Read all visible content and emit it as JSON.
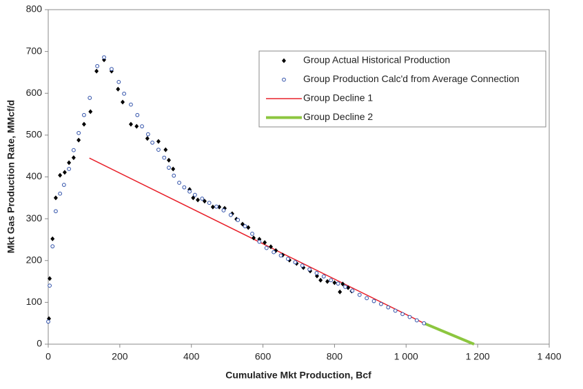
{
  "chart_data": {
    "type": "scatter",
    "x_label": "Cumulative Mkt Production, Bcf",
    "y_label": "Mkt Gas Production Rate, MMcf/d",
    "xlim": [
      0,
      1400
    ],
    "ylim": [
      0,
      800
    ],
    "xticks": [
      0,
      200,
      400,
      600,
      800,
      {
        "value": 1000,
        "label": "1 000"
      },
      {
        "value": 1200,
        "label": "1 200"
      },
      {
        "value": 1400,
        "label": "1 400"
      }
    ],
    "yticks": [
      0,
      100,
      200,
      300,
      400,
      500,
      600,
      700,
      800
    ],
    "legend_position": "upper right",
    "series": [
      {
        "name": "Group Actual Historical Production",
        "kind": "scatter",
        "marker": "diamond",
        "color": "#000000",
        "x": [
          2,
          4,
          12,
          21,
          33,
          46,
          58,
          71,
          85,
          100,
          118,
          135,
          156,
          177,
          195,
          208,
          231,
          247,
          277,
          308,
          328,
          337,
          349,
          395,
          405,
          418,
          437,
          460,
          478,
          493,
          514,
          526,
          543,
          559,
          574,
          590,
          605,
          622,
          636,
          655,
          674,
          694,
          713,
          732,
          751,
          761,
          780,
          800,
          815,
          823,
          838,
          848
        ],
        "values": [
          61,
          157,
          252,
          350,
          404,
          411,
          434,
          446,
          488,
          526,
          556,
          653,
          680,
          653,
          610,
          579,
          526,
          521,
          492,
          485,
          465,
          440,
          419,
          370,
          350,
          345,
          342,
          328,
          328,
          325,
          312,
          299,
          287,
          279,
          254,
          251,
          243,
          233,
          224,
          213,
          201,
          193,
          183,
          175,
          163,
          153,
          150,
          147,
          125,
          144,
          135,
          127
        ]
      },
      {
        "name": "Group Production Calc'd from Average Connection",
        "kind": "scatter",
        "marker": "circle",
        "color": "#2e4fa8",
        "x": [
          0,
          4,
          12,
          21,
          33,
          44,
          58,
          71,
          85,
          100,
          116,
          137,
          156,
          177,
          197,
          212,
          231,
          249,
          262,
          279,
          291,
          308,
          324,
          337,
          351,
          366,
          380,
          395,
          410,
          430,
          450,
          470,
          490,
          510,
          530,
          550,
          570,
          590,
          610,
          630,
          650,
          670,
          690,
          710,
          730,
          750,
          770,
          790,
          810,
          830,
          850,
          870,
          890,
          910,
          930,
          950,
          970,
          990,
          1010,
          1030,
          1050
        ],
        "values": [
          54,
          140,
          234,
          318,
          360,
          381,
          419,
          464,
          505,
          548,
          589,
          665,
          686,
          658,
          627,
          599,
          573,
          548,
          521,
          502,
          482,
          465,
          446,
          422,
          403,
          386,
          375,
          365,
          357,
          348,
          338,
          329,
          320,
          309,
          297,
          282,
          264,
          245,
          230,
          220,
          212,
          204,
          196,
          188,
          179,
          170,
          162,
          153,
          145,
          137,
          128,
          118,
          110,
          103,
          96,
          88,
          80,
          72,
          65,
          57,
          50
        ]
      },
      {
        "name": "Group Decline 1",
        "kind": "line",
        "color": "#e8202a",
        "width": 1.5,
        "x": [
          115,
          1050
        ],
        "values": [
          445,
          50
        ]
      },
      {
        "name": "Group Decline 2",
        "kind": "line",
        "color": "#8cc63f",
        "width": 4,
        "x": [
          1050,
          1190
        ],
        "values": [
          50,
          0
        ]
      }
    ]
  }
}
